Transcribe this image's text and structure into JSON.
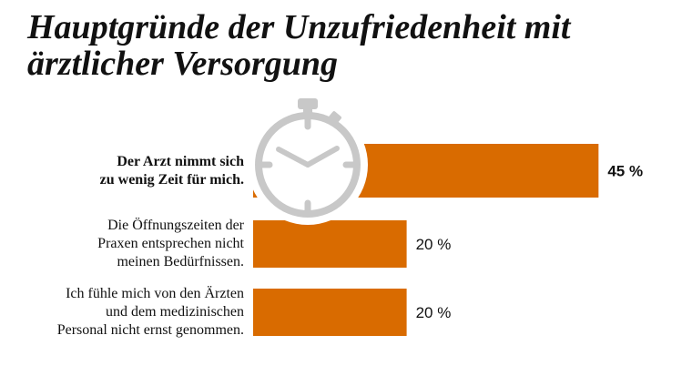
{
  "chart_data": {
    "type": "bar",
    "orientation": "horizontal",
    "title": "Hauptgründe der Unzufriedenheit mit ärztlicher Versorgung",
    "categories": [
      "Der Arzt nimmt sich zu wenig Zeit für mich.",
      "Die Öffnungszeiten der Praxen entsprechen nicht meinen Bedürfnissen.",
      "Ich fühle mich von den Ärzten und dem medizinischen Personal nicht ernst genommen."
    ],
    "category_lines": [
      [
        "Der Arzt nimmt sich",
        "zu wenig Zeit für mich."
      ],
      [
        "Die Öffnungszeiten der",
        "Praxen entsprechen nicht",
        "meinen Bedürfnissen."
      ],
      [
        "Ich fühle mich von den Ärzten",
        "und dem medizinischen",
        "Personal nicht ernst genommen."
      ]
    ],
    "values": [
      45,
      20,
      20
    ],
    "data_labels": [
      "45 %",
      "20 %",
      "20 %"
    ],
    "bold_category": 0,
    "bar_color": "#d96b00",
    "icon": "stopwatch-icon",
    "icon_color": "#c8c8c8",
    "grid": false
  }
}
